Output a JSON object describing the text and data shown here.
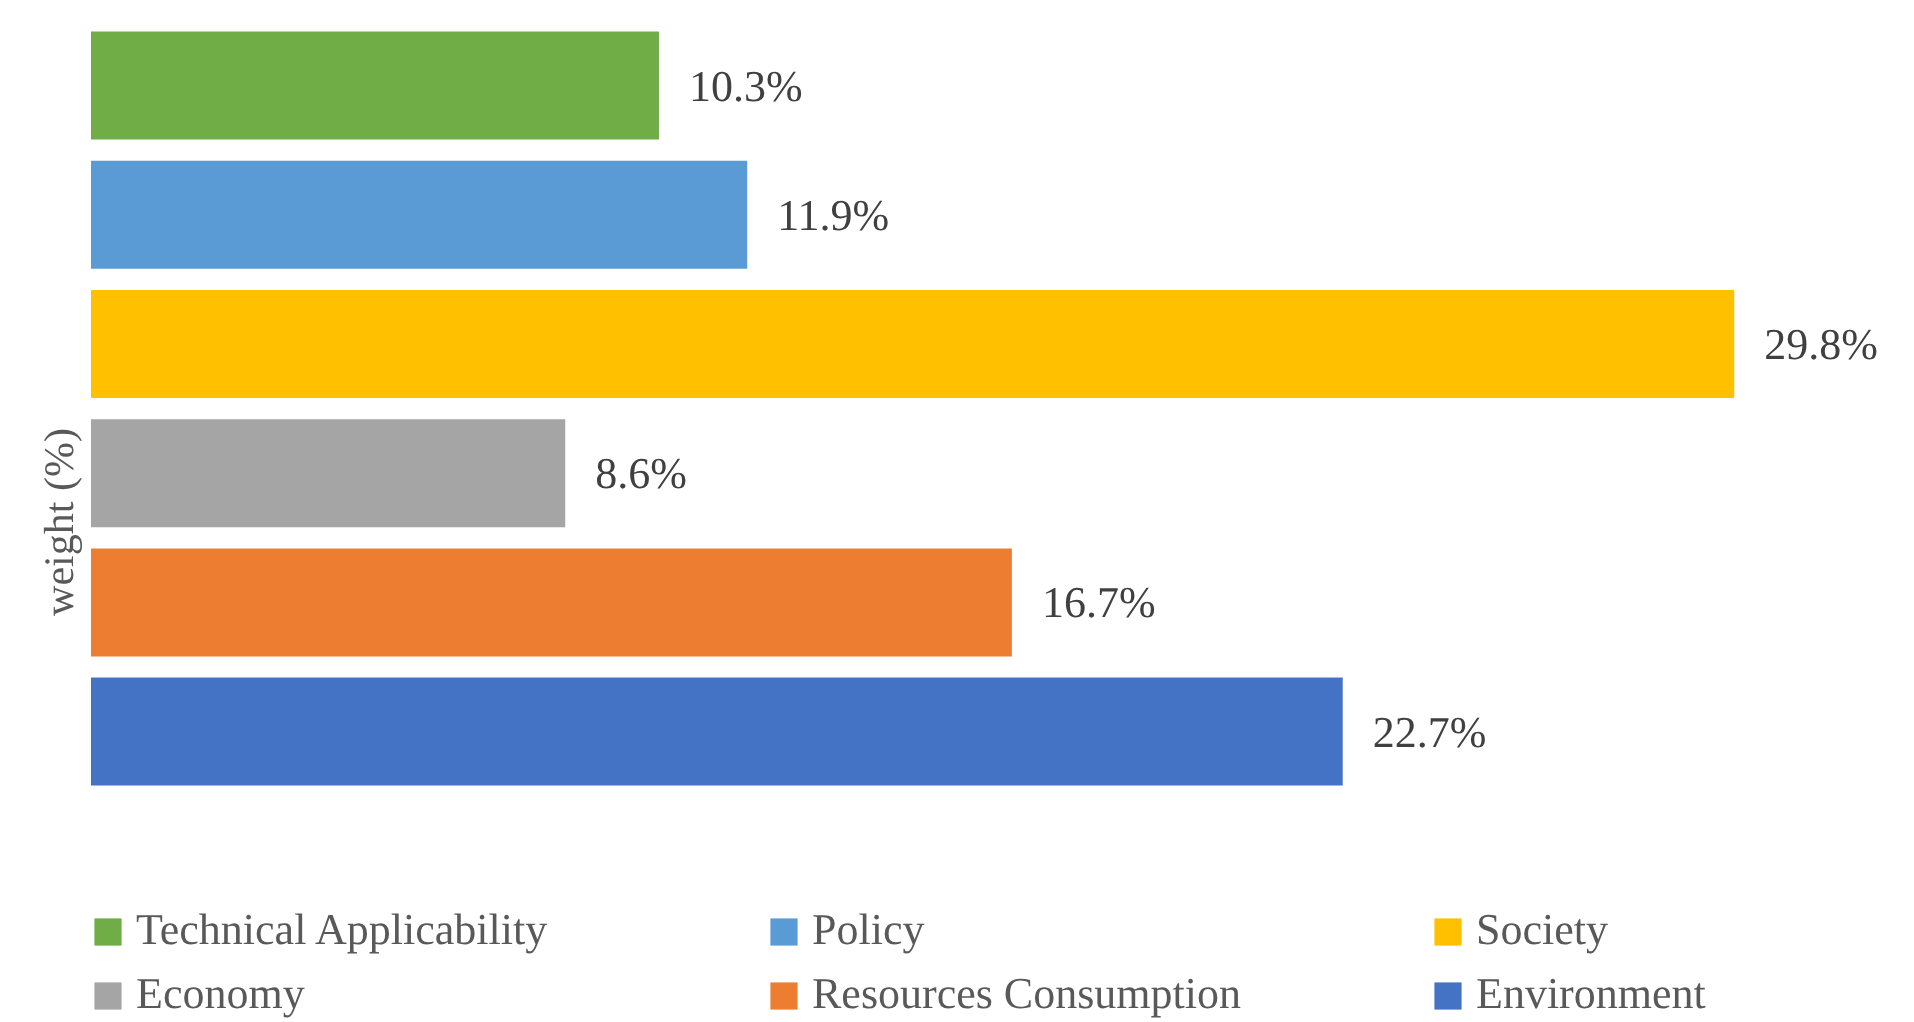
{
  "chart_data": {
    "type": "bar",
    "orientation": "horizontal",
    "ylabel": "weight (%)",
    "categories": [
      null
    ],
    "legend": "bottom",
    "series": [
      {
        "name": "Technical Applicability",
        "color": "#70ad47",
        "values": [
          10.3
        ],
        "value_labels": [
          "10.3%"
        ]
      },
      {
        "name": "Policy",
        "color": "#5b9bd5",
        "values": [
          11.9
        ],
        "value_labels": [
          "11.9%"
        ]
      },
      {
        "name": "Society",
        "color": "#ffc000",
        "values": [
          29.8
        ],
        "value_labels": [
          "29.8%"
        ]
      },
      {
        "name": "Economy",
        "color": "#a5a5a5",
        "values": [
          8.6
        ],
        "value_labels": [
          "8.6%"
        ]
      },
      {
        "name": "Resources Consumption",
        "color": "#ed7d31",
        "values": [
          16.7
        ],
        "value_labels": [
          "16.7%"
        ]
      },
      {
        "name": "Environment",
        "color": "#4472c4",
        "values": [
          22.7
        ],
        "value_labels": [
          "22.7%"
        ]
      }
    ]
  }
}
